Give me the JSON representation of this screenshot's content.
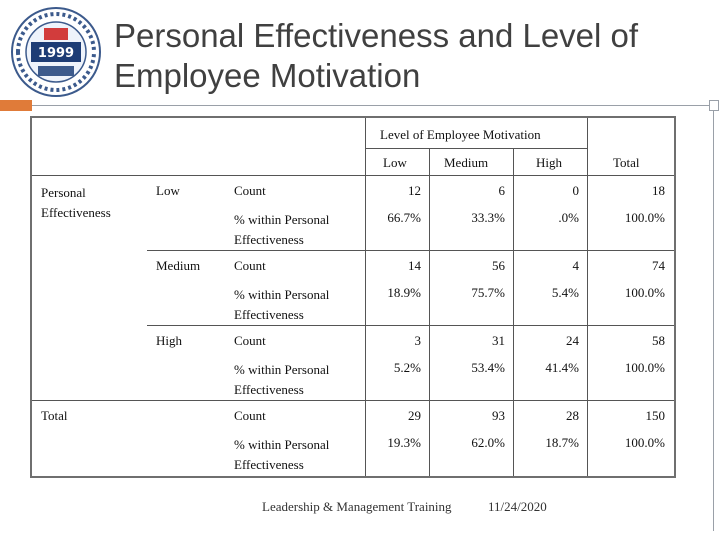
{
  "slide": {
    "title": "Personal Effectiveness and Level of Employee Motivation",
    "logo": {
      "name": "institution-emblem",
      "colors": {
        "ring": "#3c5a8c",
        "year": "#1d3c75",
        "accent": "#d23c3c"
      }
    },
    "accent_color": "#e07b39",
    "line_color": "#9aa0a8"
  },
  "table": {
    "group_header": "Level of Employee Motivation",
    "col_headers": [
      "Low",
      "Medium",
      "High",
      "Total"
    ],
    "row_variable": "Personal Effectiveness",
    "rows": [
      {
        "group": "Low",
        "count_label": "Count",
        "pct_label": "% within Personal Effectiveness",
        "count": [
          "12",
          "6",
          "0",
          "18"
        ],
        "pct": [
          "66.7%",
          "33.3%",
          ".0%",
          "100.0%"
        ]
      },
      {
        "group": "Medium",
        "count_label": "Count",
        "pct_label": "% within Personal Effectiveness",
        "count": [
          "14",
          "56",
          "4",
          "74"
        ],
        "pct": [
          "18.9%",
          "75.7%",
          "5.4%",
          "100.0%"
        ]
      },
      {
        "group": "High",
        "count_label": "Count",
        "pct_label": "% within Personal Effectiveness",
        "count": [
          "3",
          "31",
          "24",
          "58"
        ],
        "pct": [
          "5.2%",
          "53.4%",
          "41.4%",
          "100.0%"
        ]
      }
    ],
    "total": {
      "label": "Total",
      "count_label": "Count",
      "pct_label": "% within Personal Effectiveness",
      "count": [
        "29",
        "93",
        "28",
        "150"
      ],
      "pct": [
        "19.3%",
        "62.0%",
        "18.7%",
        "100.0%"
      ]
    }
  },
  "footer": {
    "training": "Leadership & Management Training",
    "date": "11/24/2020"
  }
}
